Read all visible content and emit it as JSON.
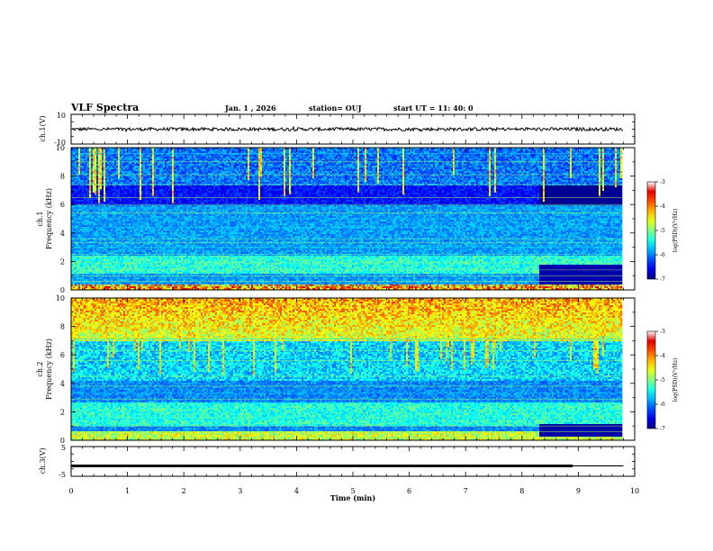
{
  "header": {
    "title": "VLF Spectra",
    "date": "Jan. 1 , 2026",
    "station": "station= OUJ",
    "start": "start UT = 11: 40: 0"
  },
  "chart_data": [
    {
      "type": "line",
      "name": "ch1-waveform",
      "ylabel": "ch.1(V)",
      "ylim": [
        -10,
        10
      ],
      "yticks": [
        "10",
        "-10"
      ],
      "xlim": [
        0,
        10
      ],
      "level": 0,
      "noise_amplitude": 1.1
    },
    {
      "type": "heatmap",
      "name": "ch1-spectrogram",
      "ylabel": "ch.1\nFrequency (kHz)",
      "ylim": [
        0,
        10
      ],
      "yticks": [
        0,
        2,
        4,
        6,
        8,
        10
      ],
      "xlim": [
        0,
        10
      ],
      "data_end_min": 9.8,
      "colorbar": {
        "label": "log(PSD)(V²/Hz)",
        "range": [
          -7,
          -3
        ],
        "ticks": [
          "-3",
          "-4",
          "-5",
          "-6",
          "-7"
        ]
      }
    },
    {
      "type": "heatmap",
      "name": "ch2-spectrogram",
      "ylabel": "ch.2\nFrequency (kHz)",
      "ylim": [
        0,
        10
      ],
      "yticks": [
        0,
        2,
        4,
        6,
        8,
        10
      ],
      "xlim": [
        0,
        10
      ],
      "data_end_min": 9.8,
      "colorbar": {
        "label": "log(PSD)(V²/Hz)",
        "range": [
          -7,
          -3
        ],
        "ticks": [
          "-3",
          "-4",
          "-5",
          "-6",
          "-7"
        ]
      }
    },
    {
      "type": "line",
      "name": "ch3-signal",
      "ylabel": "ch.3(V)",
      "ylim": [
        -5,
        5
      ],
      "yticks": [
        "5",
        "-5"
      ],
      "xlim": [
        0,
        10
      ],
      "xticks": [
        0,
        1,
        2,
        3,
        4,
        5,
        6,
        7,
        8,
        9,
        10
      ],
      "xlabel": "Time (min)",
      "segments": [
        {
          "x": [
            0,
            8.9
          ],
          "y": -1.5,
          "thick": true
        },
        {
          "x": [
            8.9,
            9.8
          ],
          "y": -1.5,
          "thick": false
        }
      ]
    }
  ],
  "colors": {
    "trace": "#000000",
    "cmap_low": "#00007f",
    "cmap_high": "#ffffff"
  }
}
